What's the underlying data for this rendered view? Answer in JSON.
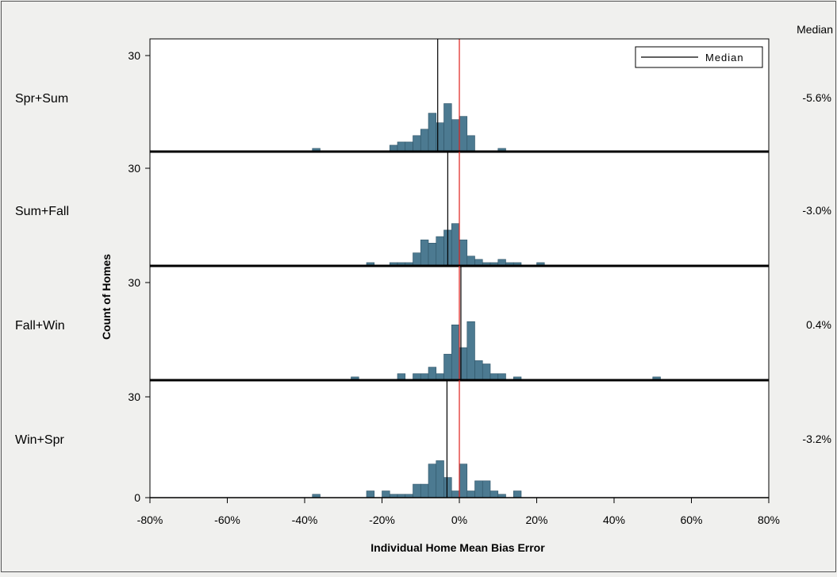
{
  "chart_data": {
    "type": "histogram",
    "title": "",
    "xlabel": "Individual Home Mean Bias Error",
    "ylabel": "Count of Homes",
    "xlim": [
      -80,
      80
    ],
    "ylim": [
      0,
      30
    ],
    "x_tick_labels": [
      "-80%",
      "-60%",
      "-40%",
      "-20%",
      "0%",
      "20%",
      "40%",
      "60%",
      "80%"
    ],
    "y_tick_labels": [
      "0",
      "30"
    ],
    "bin_width": 2,
    "median_column_header": "Median",
    "legend": {
      "label": "Median",
      "placement": "top-right"
    },
    "reference_line_x": 0,
    "panels": [
      {
        "name": "Spr+Sum",
        "median": -5.6,
        "median_label": "-5.6%",
        "bins": [
          [
            -37,
            1
          ],
          [
            -17,
            2
          ],
          [
            -15,
            3
          ],
          [
            -13,
            3
          ],
          [
            -11,
            5
          ],
          [
            -9,
            7
          ],
          [
            -7,
            12
          ],
          [
            -5,
            9
          ],
          [
            -3,
            15
          ],
          [
            -1,
            10
          ],
          [
            1,
            11
          ],
          [
            3,
            5
          ],
          [
            11,
            1
          ]
        ]
      },
      {
        "name": "Sum+Fall",
        "median": -3.0,
        "median_label": "-3.0%",
        "bins": [
          [
            -23,
            1
          ],
          [
            -17,
            1
          ],
          [
            -15,
            1
          ],
          [
            -13,
            1
          ],
          [
            -11,
            4
          ],
          [
            -9,
            8
          ],
          [
            -7,
            7
          ],
          [
            -5,
            9
          ],
          [
            -3,
            11
          ],
          [
            -1,
            13
          ],
          [
            1,
            8
          ],
          [
            3,
            3
          ],
          [
            5,
            2
          ],
          [
            7,
            1
          ],
          [
            9,
            1
          ],
          [
            11,
            2
          ],
          [
            13,
            1
          ],
          [
            15,
            1
          ],
          [
            21,
            1
          ]
        ]
      },
      {
        "name": "Fall+Win",
        "median": 0.4,
        "median_label": "0.4%",
        "bins": [
          [
            -27,
            1
          ],
          [
            -15,
            2
          ],
          [
            -11,
            2
          ],
          [
            -9,
            2
          ],
          [
            -7,
            4
          ],
          [
            -5,
            2
          ],
          [
            -3,
            8
          ],
          [
            -1,
            17
          ],
          [
            1,
            10
          ],
          [
            3,
            18
          ],
          [
            5,
            6
          ],
          [
            7,
            5
          ],
          [
            9,
            2
          ],
          [
            11,
            2
          ],
          [
            15,
            1
          ],
          [
            51,
            1
          ]
        ]
      },
      {
        "name": "Win+Spr",
        "median": -3.2,
        "median_label": "-3.2%",
        "bins": [
          [
            -37,
            1
          ],
          [
            -23,
            2
          ],
          [
            -19,
            2
          ],
          [
            -17,
            1
          ],
          [
            -15,
            1
          ],
          [
            -13,
            1
          ],
          [
            -11,
            4
          ],
          [
            -9,
            4
          ],
          [
            -7,
            10
          ],
          [
            -5,
            11
          ],
          [
            -3,
            6
          ],
          [
            -1,
            2
          ],
          [
            1,
            10
          ],
          [
            3,
            2
          ],
          [
            5,
            5
          ],
          [
            7,
            5
          ],
          [
            9,
            2
          ],
          [
            11,
            1
          ],
          [
            15,
            2
          ]
        ]
      }
    ],
    "colors": {
      "bar": "#4c7a91",
      "bar_edge": "#2f5468",
      "median_line": "#000000",
      "reference_line": "#e0201b"
    }
  }
}
